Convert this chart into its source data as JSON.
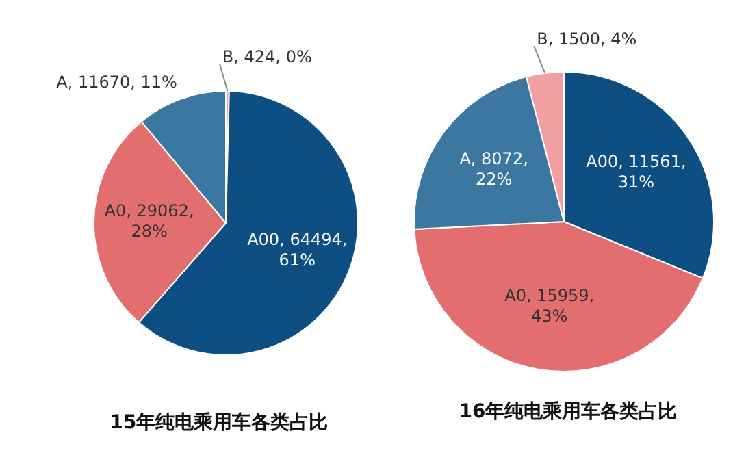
{
  "chart_data": [
    {
      "type": "pie",
      "title": "15年纯电乘用车各类占比",
      "categories": [
        "B",
        "A00",
        "A0",
        "A"
      ],
      "values": [
        424,
        64494,
        29062,
        11670
      ],
      "colors": [
        "#f0a0a2",
        "#0d4f83",
        "#e36e70",
        "#3b77a0"
      ],
      "value_labels": [
        ", 424, 0%",
        ", 64494, 61%",
        ", 29062, 28%",
        ", 11670, 11%"
      ]
    },
    {
      "type": "pie",
      "title": "16年纯电乘用车各类占比",
      "categories": [
        "A00",
        "A0",
        "A",
        "B"
      ],
      "values": [
        11561,
        15959,
        8072,
        1500
      ],
      "colors": [
        "#0d4f83",
        "#e36e70",
        "#3b77a0",
        "#f0a0a2"
      ],
      "value_labels": [
        ", 11561, 31%",
        ", 15959, 43%",
        ", 8072, 22%",
        ", 1500, 4%"
      ]
    }
  ]
}
